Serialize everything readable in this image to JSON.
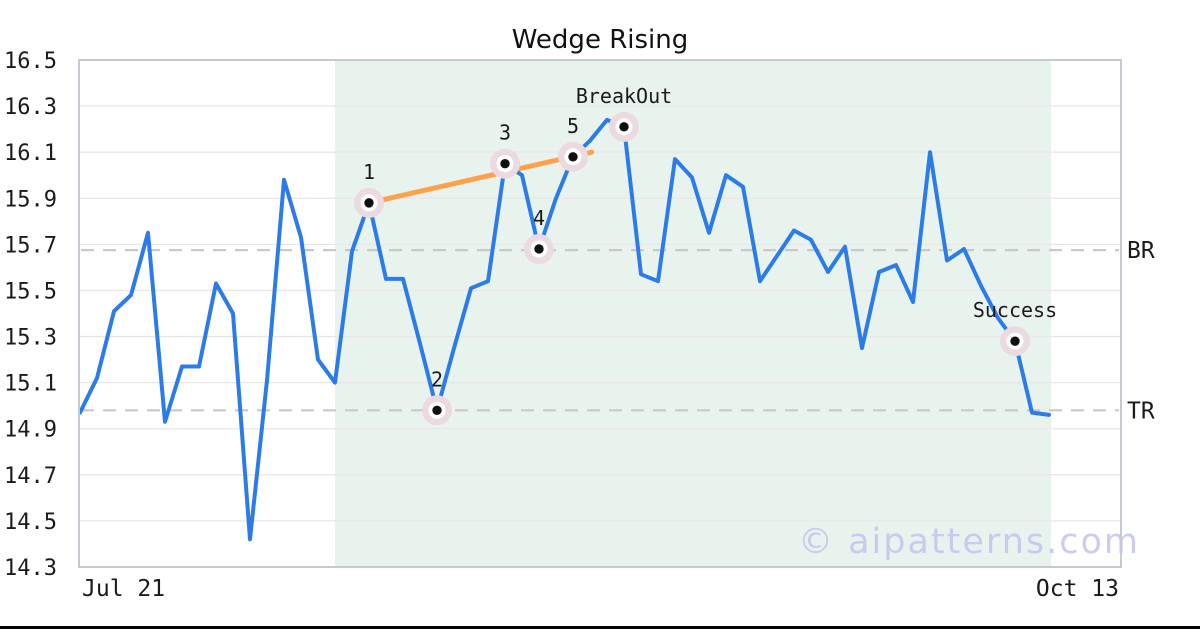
{
  "title": "Wedge Rising",
  "watermark": "© aipatterns.com",
  "x_axis": {
    "start_label": "Jul 21",
    "end_label": "Oct 13"
  },
  "y_axis": {
    "min": 14.3,
    "max": 16.5,
    "ticks": [
      16.5,
      16.3,
      16.1,
      15.9,
      15.7,
      15.5,
      15.3,
      15.1,
      14.9,
      14.7,
      14.5,
      14.3
    ]
  },
  "colors": {
    "line": "#2b7ce9",
    "trendline": "#ffa14a",
    "pattern_zone_fill": "#e9f3ee",
    "marker_halo": "#ecdae1",
    "marker_ring": "#ffffff",
    "marker_dot": "#111111",
    "dashed_level": "#c9c9c9",
    "grid": "#e7e7e7",
    "border": "#c6cad0",
    "watermark": "#c6c7ee",
    "text": "#1a1a1a",
    "bottom_bar": "#000000"
  },
  "chart_data": {
    "type": "line",
    "title": "Wedge Rising",
    "xlabel": "",
    "ylabel": "",
    "ylim": [
      14.3,
      16.5
    ],
    "grid": true,
    "x_start_label": "Jul 21",
    "x_end_label": "Oct 13",
    "values": [
      14.97,
      15.12,
      15.41,
      15.48,
      15.75,
      14.93,
      15.17,
      15.17,
      15.53,
      15.4,
      14.42,
      15.11,
      15.98,
      15.73,
      15.2,
      15.1,
      15.67,
      15.88,
      15.55,
      15.55,
      15.27,
      14.98,
      15.25,
      15.51,
      15.54,
      16.05,
      16.0,
      15.68,
      15.9,
      16.08,
      16.15,
      16.24,
      16.21,
      15.57,
      15.54,
      16.07,
      15.99,
      15.75,
      16.0,
      15.95,
      15.54,
      15.65,
      15.76,
      15.72,
      15.58,
      15.69,
      15.25,
      15.58,
      15.61,
      15.45,
      16.1,
      15.63,
      15.68,
      15.52,
      15.38,
      15.28,
      14.97,
      14.96
    ],
    "pattern_zone": {
      "start_index": 15,
      "end_index": 57
    },
    "trendline": {
      "from_index": 17,
      "from_value": 15.88,
      "to_index": 30.1,
      "to_value": 16.1
    },
    "annotations": [
      {
        "label": "1",
        "index": 17,
        "value": 15.88
      },
      {
        "label": "2",
        "index": 21,
        "value": 14.98
      },
      {
        "label": "3",
        "index": 25,
        "value": 16.05
      },
      {
        "label": "4",
        "index": 27,
        "value": 15.68
      },
      {
        "label": "5",
        "index": 29,
        "value": 16.08
      },
      {
        "label": "BreakOut",
        "index": 32,
        "value": 16.21
      },
      {
        "label": "Success",
        "index": 55,
        "value": 15.28
      }
    ],
    "hlines": [
      {
        "label": "BR",
        "value": 15.675
      },
      {
        "label": "TR",
        "value": 14.98
      }
    ]
  }
}
